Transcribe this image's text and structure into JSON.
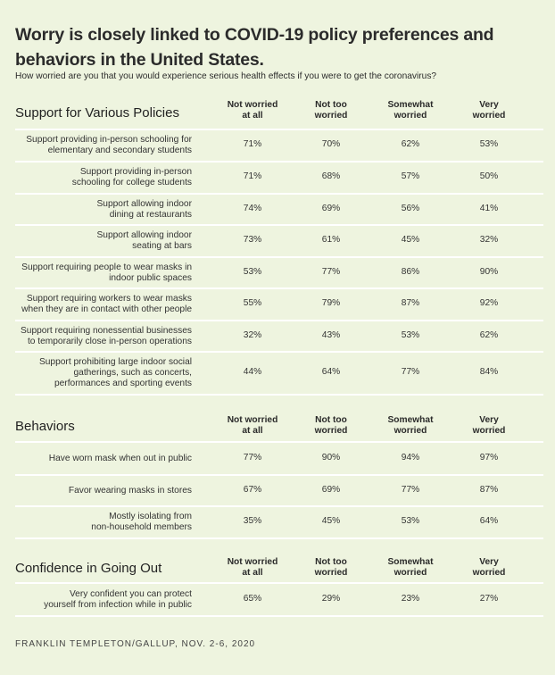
{
  "title": "Worry is closely linked to COVID-19 policy preferences and behaviors in the United States.",
  "subtitle": "How worried are you that you would experience serious health effects if you were to get the coronavirus?",
  "footer": "FRANKLIN TEMPLETON/GALLUP, NOV. 2-6, 2020",
  "colors": {
    "background": "#eef4df",
    "divider": "#ffffff",
    "text": "#2a2a2a"
  },
  "chart_data": {
    "type": "table",
    "columns": [
      "Not worried at all",
      "Not too worried",
      "Somewhat worried",
      "Very worried"
    ],
    "sections": [
      {
        "title": "Support for Various Policies",
        "rows": [
          {
            "label": "Support providing in-person schooling for elementary and secondary students",
            "values": [
              "71%",
              "70%",
              "62%",
              "53%"
            ]
          },
          {
            "label": "Support providing in-person schooling for college students",
            "values": [
              "71%",
              "68%",
              "57%",
              "50%"
            ]
          },
          {
            "label": "Support allowing indoor dining at restaurants",
            "values": [
              "74%",
              "69%",
              "56%",
              "41%"
            ]
          },
          {
            "label": "Support allowing indoor seating at bars",
            "values": [
              "73%",
              "61%",
              "45%",
              "32%"
            ]
          },
          {
            "label": "Support requiring people to wear masks in indoor public spaces",
            "values": [
              "53%",
              "77%",
              "86%",
              "90%"
            ]
          },
          {
            "label": "Support requiring workers to wear masks when they are in contact with other people",
            "values": [
              "55%",
              "79%",
              "87%",
              "92%"
            ]
          },
          {
            "label": "Support requiring nonessential businesses to temporarily close in-person operations",
            "values": [
              "32%",
              "43%",
              "53%",
              "62%"
            ]
          },
          {
            "label": "Support prohibiting large indoor social gatherings, such as concerts, performances and sporting events",
            "values": [
              "44%",
              "64%",
              "77%",
              "84%"
            ]
          }
        ]
      },
      {
        "title": "Behaviors",
        "rows": [
          {
            "label": "Have worn mask when out in public",
            "values": [
              "77%",
              "90%",
              "94%",
              "97%"
            ]
          },
          {
            "label": "Favor wearing masks in stores",
            "values": [
              "67%",
              "69%",
              "77%",
              "87%"
            ]
          },
          {
            "label": "Mostly isolating from non-household members",
            "values": [
              "35%",
              "45%",
              "53%",
              "64%"
            ]
          }
        ]
      },
      {
        "title": "Confidence in Going Out",
        "rows": [
          {
            "label": "Very confident you can protect yourself from infection while in public",
            "values": [
              "65%",
              "29%",
              "23%",
              "27%"
            ]
          }
        ]
      }
    ]
  }
}
